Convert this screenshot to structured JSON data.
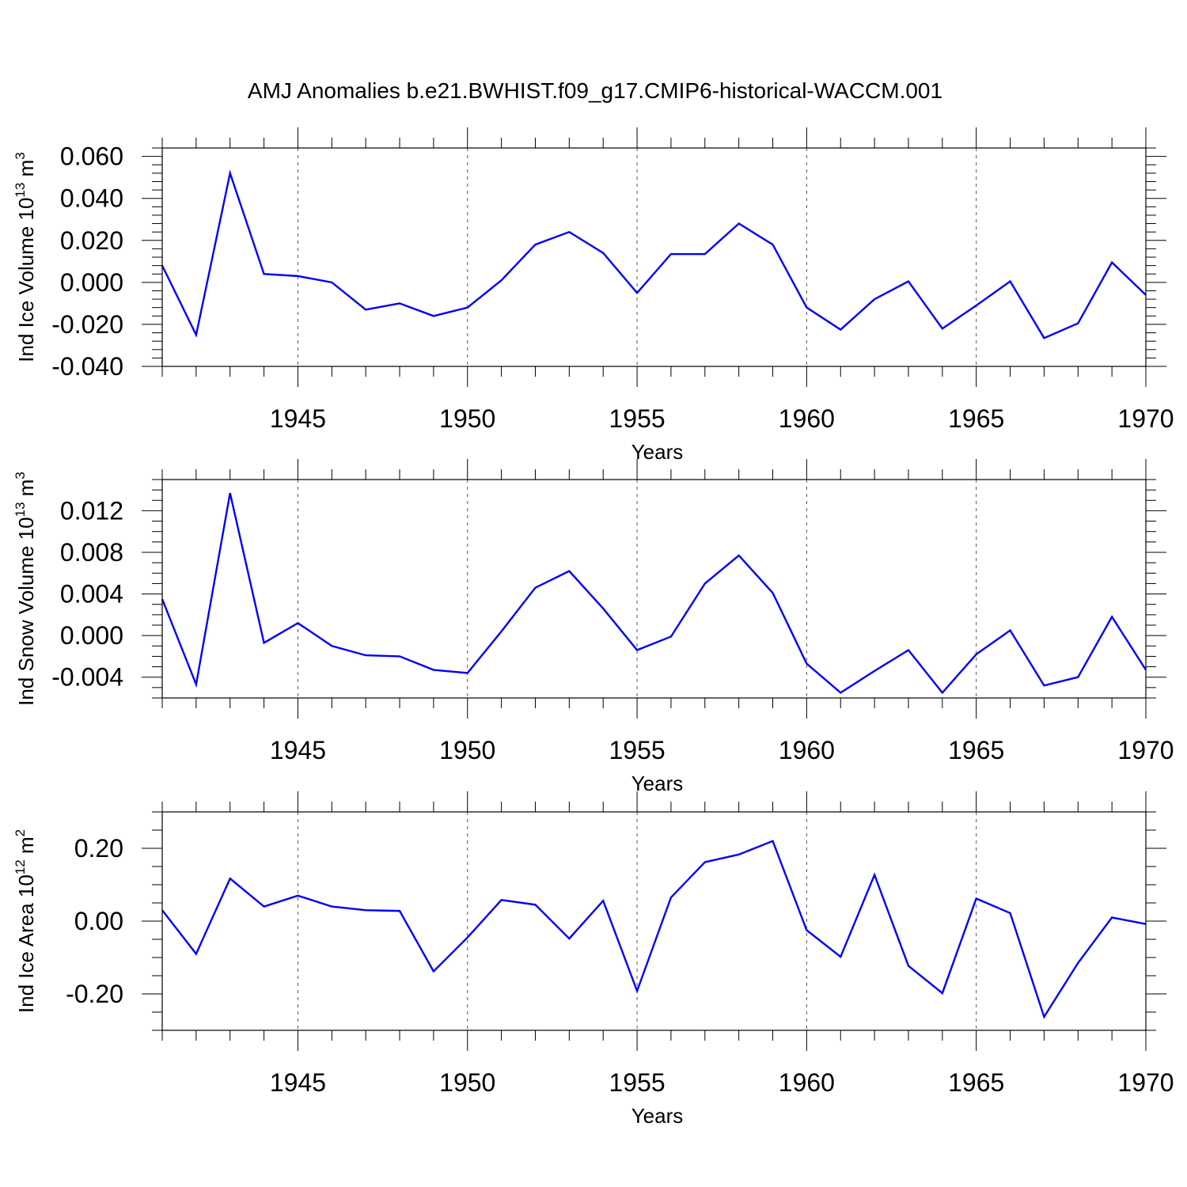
{
  "chart_data": {
    "title": "AMJ Anomalies b.e21.BWHIST.f09_g17.CMIP6-historical-WACCM.001",
    "type": "line",
    "series_color": "#0000ff",
    "x": [
      1941,
      1942,
      1943,
      1944,
      1945,
      1946,
      1947,
      1948,
      1949,
      1950,
      1951,
      1952,
      1953,
      1954,
      1955,
      1956,
      1957,
      1958,
      1959,
      1960,
      1961,
      1962,
      1963,
      1964,
      1965,
      1966,
      1967,
      1968,
      1969,
      1970
    ],
    "xlim": [
      1941,
      1970
    ],
    "xticks": [
      1945,
      1950,
      1955,
      1960,
      1965,
      1970
    ],
    "panels": [
      {
        "ylabel_main": "Ind Ice Volume 10",
        "ylabel_exp": "13",
        "ylabel_unit": " m",
        "ylabel_unit_exp": "3",
        "xlabel": "Years",
        "ylim": [
          -0.04,
          0.064
        ],
        "yticks": [
          -0.04,
          -0.02,
          0.0,
          0.02,
          0.04,
          0.06
        ],
        "yticklabels": [
          "-0.040",
          "-0.020",
          "0.000",
          "0.020",
          "0.040",
          "0.060"
        ],
        "minor_step": 0.004,
        "values": [
          0.008,
          -0.025,
          0.052,
          0.004,
          0.003,
          0.0,
          -0.013,
          -0.01,
          -0.016,
          -0.012,
          0.001,
          0.018,
          0.024,
          0.014,
          -0.005,
          0.0135,
          0.0135,
          0.028,
          0.018,
          -0.012,
          -0.0225,
          -0.008,
          0.0005,
          -0.022,
          -0.011,
          0.0005,
          -0.0265,
          -0.0195,
          0.0095,
          -0.006
        ]
      },
      {
        "ylabel_main": "Ind Snow Volume 10",
        "ylabel_exp": "13",
        "ylabel_unit": " m",
        "ylabel_unit_exp": "3",
        "xlabel": "Years",
        "ylim": [
          -0.006,
          0.015
        ],
        "yticks": [
          -0.004,
          0.0,
          0.004,
          0.008,
          0.012
        ],
        "yticklabels": [
          "-0.004",
          "0.000",
          "0.004",
          "0.008",
          "0.012"
        ],
        "minor_step": 0.001,
        "values": [
          0.0035,
          -0.0047,
          0.0137,
          -0.0007,
          0.0012,
          -0.001,
          -0.0019,
          -0.002,
          -0.0033,
          -0.0036,
          0.0004,
          0.0046,
          0.0062,
          0.0026,
          -0.0014,
          -0.0001,
          0.005,
          0.0077,
          0.0041,
          -0.0027,
          -0.0055,
          -0.0034,
          -0.0014,
          -0.0055,
          -0.0018,
          0.0005,
          -0.0048,
          -0.004,
          0.0018,
          -0.0033
        ]
      },
      {
        "ylabel_main": "Ind Ice Area 10",
        "ylabel_exp": "12",
        "ylabel_unit": " m",
        "ylabel_unit_exp": "2",
        "xlabel": "Years",
        "ylim": [
          -0.3,
          0.3
        ],
        "yticks": [
          -0.2,
          0.0,
          0.2
        ],
        "yticklabels": [
          "-0.20",
          "0.00",
          "0.20"
        ],
        "minor_step": 0.05,
        "values": [
          0.03,
          -0.09,
          0.117,
          0.04,
          0.07,
          0.04,
          0.03,
          0.028,
          -0.138,
          -0.045,
          0.058,
          0.045,
          -0.048,
          0.056,
          -0.192,
          0.065,
          0.162,
          0.183,
          0.22,
          -0.025,
          -0.098,
          0.127,
          -0.123,
          -0.198,
          0.062,
          0.022,
          -0.263,
          -0.115,
          0.01,
          -0.008
        ]
      }
    ]
  }
}
